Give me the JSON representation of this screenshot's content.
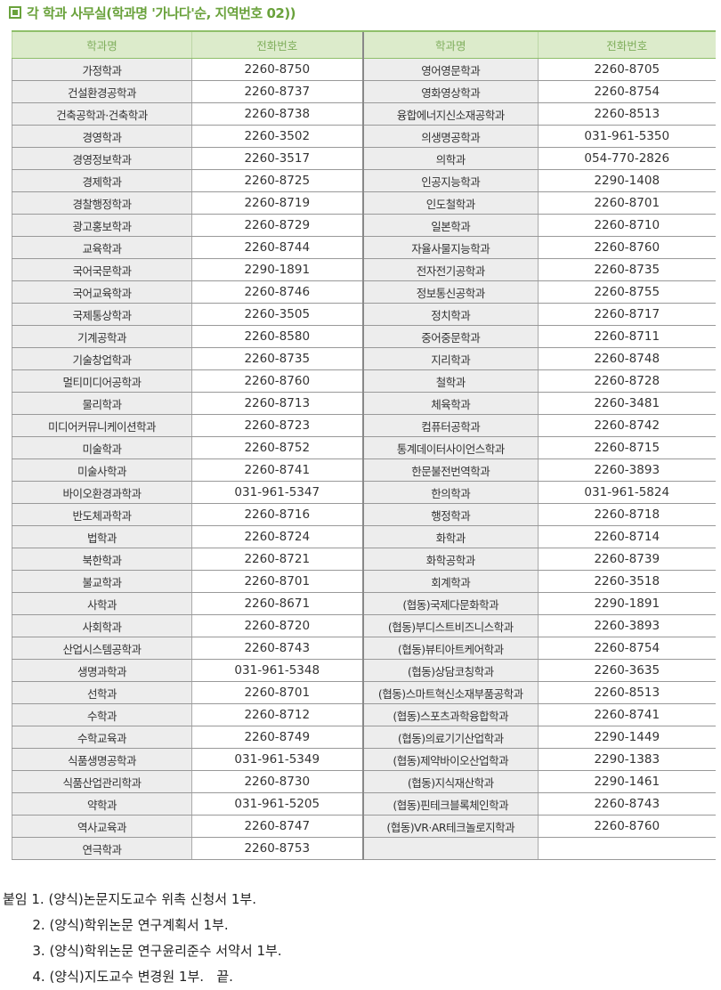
{
  "title": "각 학과 사무실(학과명 '가나다'순, 지역번호 02))",
  "headers": [
    "학과명",
    "전화번호",
    "학과명",
    "전화번호"
  ],
  "left": [
    [
      "가정학과",
      "2260-8750"
    ],
    [
      "건설환경공학과",
      "2260-8737"
    ],
    [
      "건축공학과·건축학과",
      "2260-8738"
    ],
    [
      "경영학과",
      "2260-3502"
    ],
    [
      "경영정보학과",
      "2260-3517"
    ],
    [
      "경제학과",
      "2260-8725"
    ],
    [
      "경찰행정학과",
      "2260-8719"
    ],
    [
      "광고홍보학과",
      "2260-8729"
    ],
    [
      "교육학과",
      "2260-8744"
    ],
    [
      "국어국문학과",
      "2290-1891"
    ],
    [
      "국어교육학과",
      "2260-8746"
    ],
    [
      "국제통상학과",
      "2260-3505"
    ],
    [
      "기계공학과",
      "2260-8580"
    ],
    [
      "기술창업학과",
      "2260-8735"
    ],
    [
      "멀티미디어공학과",
      "2260-8760"
    ],
    [
      "물리학과",
      "2260-8713"
    ],
    [
      "미디어커뮤니케이션학과",
      "2260-8723"
    ],
    [
      "미술학과",
      "2260-8752"
    ],
    [
      "미술사학과",
      "2260-8741"
    ],
    [
      "바이오환경과학과",
      "031-961-5347"
    ],
    [
      "반도체과학과",
      "2260-8716"
    ],
    [
      "법학과",
      "2260-8724"
    ],
    [
      "북한학과",
      "2260-8721"
    ],
    [
      "불교학과",
      "2260-8701"
    ],
    [
      "사학과",
      "2260-8671"
    ],
    [
      "사회학과",
      "2260-8720"
    ],
    [
      "산업시스템공학과",
      "2260-8743"
    ],
    [
      "생명과학과",
      "031-961-5348"
    ],
    [
      "선학과",
      "2260-8701"
    ],
    [
      "수학과",
      "2260-8712"
    ],
    [
      "수학교육과",
      "2260-8749"
    ],
    [
      "식품생명공학과",
      "031-961-5349"
    ],
    [
      "식품산업관리학과",
      "2260-8730"
    ],
    [
      "약학과",
      "031-961-5205"
    ],
    [
      "역사교육과",
      "2260-8747"
    ],
    [
      "연극학과",
      "2260-8753"
    ]
  ],
  "right": [
    [
      "영어영문학과",
      "2260-8705"
    ],
    [
      "영화영상학과",
      "2260-8754"
    ],
    [
      "융합에너지신소재공학과",
      "2260-8513"
    ],
    [
      "의생명공학과",
      "031-961-5350"
    ],
    [
      "의학과",
      "054-770-2826"
    ],
    [
      "인공지능학과",
      "2290-1408"
    ],
    [
      "인도철학과",
      "2260-8701"
    ],
    [
      "일본학과",
      "2260-8710"
    ],
    [
      "자율사물지능학과",
      "2260-8760"
    ],
    [
      "전자전기공학과",
      "2260-8735"
    ],
    [
      "정보통신공학과",
      "2260-8755"
    ],
    [
      "정치학과",
      "2260-8717"
    ],
    [
      "중어중문학과",
      "2260-8711"
    ],
    [
      "지리학과",
      "2260-8748"
    ],
    [
      "철학과",
      "2260-8728"
    ],
    [
      "체육학과",
      "2260-3481"
    ],
    [
      "컴퓨터공학과",
      "2260-8742"
    ],
    [
      "통계데이터사이언스학과",
      "2260-8715"
    ],
    [
      "한문불전번역학과",
      "2260-3893"
    ],
    [
      "한의학과",
      "031-961-5824"
    ],
    [
      "행정학과",
      "2260-8718"
    ],
    [
      "화학과",
      "2260-8714"
    ],
    [
      "화학공학과",
      "2260-8739"
    ],
    [
      "회계학과",
      "2260-3518"
    ],
    [
      "(협동)국제다문화학과",
      "2290-1891"
    ],
    [
      "(협동)부디스트비즈니스학과",
      "2260-3893"
    ],
    [
      "(협동)뷰티아트케어학과",
      "2260-8754"
    ],
    [
      "(협동)상담코칭학과",
      "2260-3635"
    ],
    [
      "(협동)스마트혁신소재부품공학과",
      "2260-8513"
    ],
    [
      "(협동)스포츠과학융합학과",
      "2260-8741"
    ],
    [
      "(협동)의료기기산업학과",
      "2290-1449"
    ],
    [
      "(협동)제약바이오산업학과",
      "2290-1383"
    ],
    [
      "(협동)지식재산학과",
      "2290-1461"
    ],
    [
      "(협동)핀테크블록체인학과",
      "2260-8743"
    ],
    [
      "(협동)VR·AR테크놀로지학과",
      "2260-8760"
    ],
    [
      "",
      ""
    ]
  ],
  "attachments": [
    "붙임 1. (양식)논문지도교수 위촉 신청서 1부.",
    "       2. (양식)학위논문 연구계획서 1부.",
    "       3. (양식)학위논문 연구윤리준수 서약서 1부.",
    "       4. (양식)지도교수 변경원 1부.   끝."
  ],
  "colors": {
    "accent": "#6aa23c",
    "header_bg": "#dcebcb",
    "name_cell_bg": "#ededed"
  }
}
